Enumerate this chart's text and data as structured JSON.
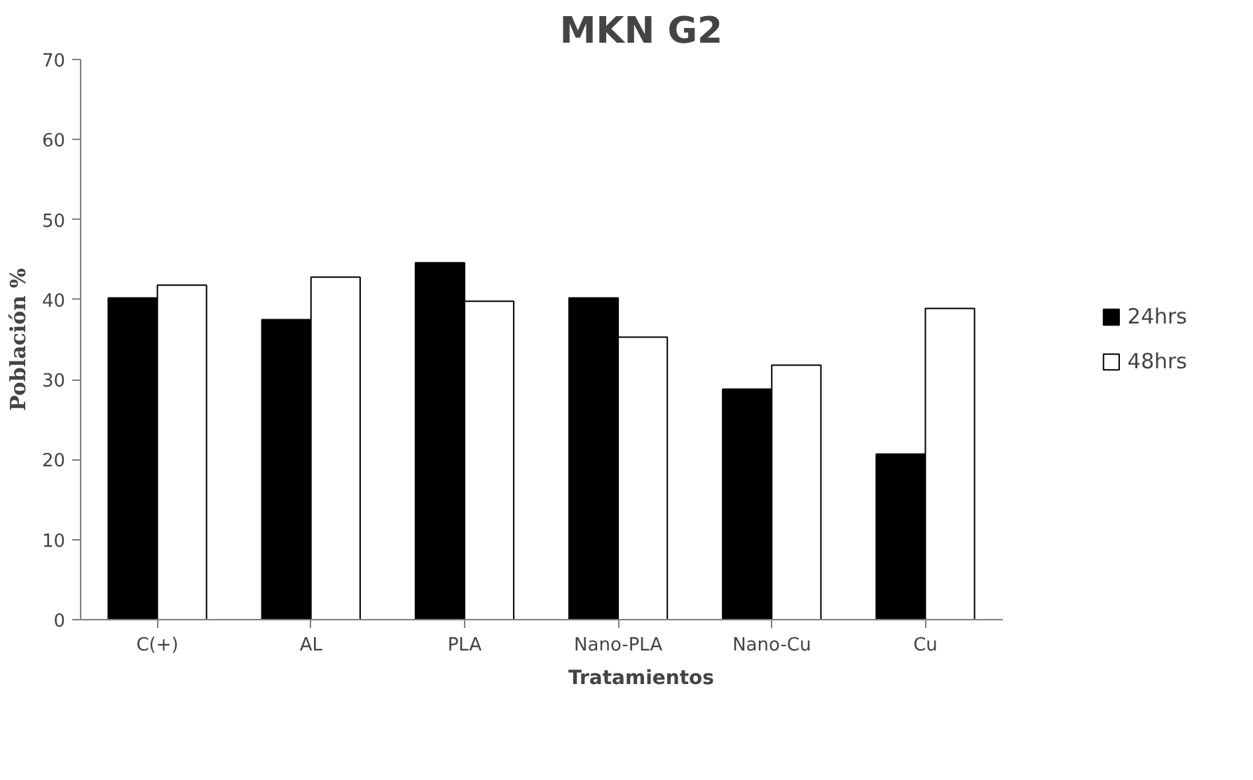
{
  "chart_data": {
    "type": "bar",
    "title": "MKN G2",
    "xlabel": "Tratamientos",
    "ylabel": "Población %",
    "categories": [
      "C(+)",
      "AL",
      "PLA",
      "Nano-PLA",
      "Nano-Cu",
      "Cu"
    ],
    "series": [
      {
        "name": "24hrs",
        "color": "#000000",
        "values": [
          40.2,
          37.5,
          44.6,
          40.2,
          28.8,
          20.7
        ]
      },
      {
        "name": "48hrs",
        "color": "#ffffff",
        "values": [
          41.8,
          42.8,
          39.8,
          35.3,
          31.8,
          38.9
        ]
      }
    ],
    "ylim": [
      0,
      70
    ],
    "yticks": [
      0,
      10,
      20,
      30,
      40,
      50,
      60,
      70
    ],
    "grid": false,
    "legend": "right"
  }
}
